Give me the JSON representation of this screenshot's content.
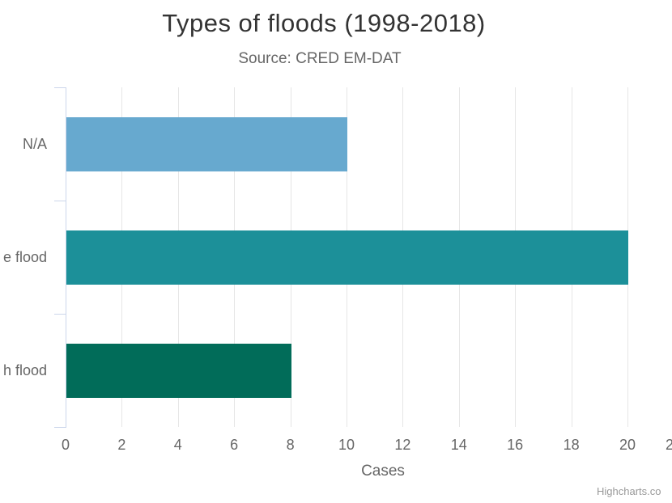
{
  "chart": {
    "title": "Types of floods (1998-2018)",
    "subtitle": "Source: CRED EM-DAT",
    "xlabel": "Cases",
    "credit": "Highcharts.co",
    "partial_last_tick": "2"
  },
  "chart_data": {
    "type": "bar",
    "orientation": "horizontal",
    "title": "Types of floods (1998-2018)",
    "subtitle": "Source: CRED EM-DAT",
    "categories": [
      "N/A",
      "e flood",
      "h flood"
    ],
    "values": [
      10,
      20,
      8
    ],
    "bar_colors": [
      "#67a9cf",
      "#1c9099",
      "#016c59"
    ],
    "xlabel": "Cases",
    "xlim": [
      0,
      22
    ],
    "x_ticks": [
      0,
      2,
      4,
      6,
      8,
      10,
      12,
      14,
      16,
      18,
      20
    ],
    "grid": true,
    "legend": false,
    "axis_color": "#ccd6eb",
    "gridline_color": "#e6e6e6",
    "title_color": "#333333",
    "label_color": "#666666",
    "credit_color": "#999999"
  }
}
